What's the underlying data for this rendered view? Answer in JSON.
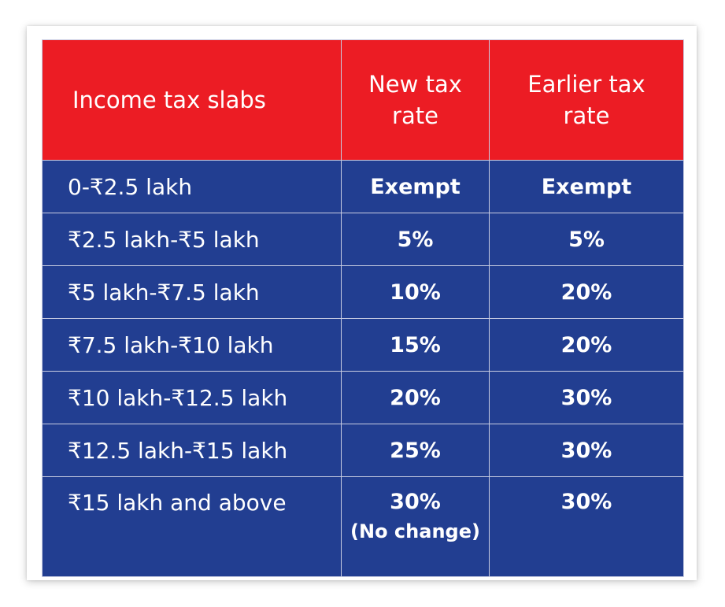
{
  "table": {
    "headers": {
      "slab": "Income tax slabs",
      "new_rate": "New tax rate",
      "earlier_rate": "Earlier tax rate"
    },
    "rows": [
      {
        "slab": "0-₹2.5 lakh",
        "new_rate": "Exempt",
        "earlier_rate": "Exempt"
      },
      {
        "slab": "₹2.5 lakh-₹5 lakh",
        "new_rate": "5%",
        "earlier_rate": "5%"
      },
      {
        "slab": "₹5 lakh-₹7.5 lakh",
        "new_rate": "10%",
        "earlier_rate": "20%"
      },
      {
        "slab": "₹7.5 lakh-₹10 lakh",
        "new_rate": "15%",
        "earlier_rate": "20%"
      },
      {
        "slab": "₹10 lakh-₹12.5 lakh",
        "new_rate": "20%",
        "earlier_rate": "30%"
      },
      {
        "slab": "₹12.5 lakh-₹15 lakh",
        "new_rate": "25%",
        "earlier_rate": "30%"
      },
      {
        "slab": "₹15 lakh and above",
        "new_rate": "30%",
        "new_rate_note": "(No change)",
        "earlier_rate": "30%"
      }
    ]
  },
  "colors": {
    "header_background": "#ec1c24",
    "body_background": "#223e91",
    "text": "#ffffff"
  }
}
